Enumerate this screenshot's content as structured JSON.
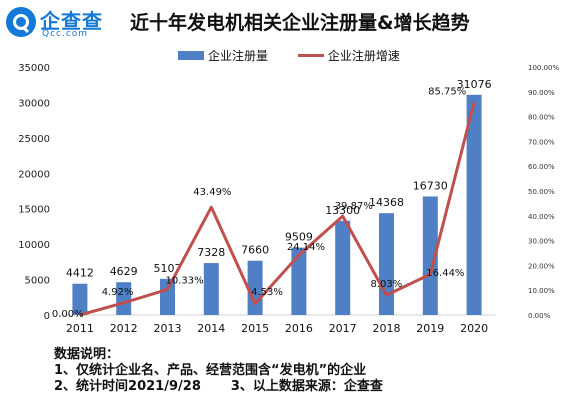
{
  "brand": {
    "name_cn": "企查查",
    "name_en": "Qcc.com",
    "color": "#1479d7"
  },
  "title": "近十年发电机相关企业注册量&增长趋势",
  "notes": {
    "heading": "数据说明：",
    "line1": "1、仅统计企业名、产品、经营范围含“发电机”的企业",
    "line2a": "2、统计时间2021/9/28",
    "line2b": "3、以上数据来源：企查查"
  },
  "chart_data": {
    "type": "bar",
    "title": "近十年发电机相关企业注册量&增长趋势",
    "categories": [
      "2011",
      "2012",
      "2013",
      "2014",
      "2015",
      "2016",
      "2017",
      "2018",
      "2019",
      "2020"
    ],
    "series": [
      {
        "name": "企业注册量",
        "type": "bar",
        "axis": "left",
        "color": "#4f7fc4",
        "values": [
          4412,
          4629,
          5107,
          7328,
          7660,
          9509,
          13300,
          14368,
          16730,
          31076
        ],
        "labels": [
          "4412",
          "4629",
          "5107",
          "7328",
          "7660",
          "9509",
          "13300",
          "14368",
          "16730",
          "31076"
        ]
      },
      {
        "name": "企业注册增速",
        "type": "line",
        "axis": "right",
        "color": "#c0504d",
        "values": [
          0.0,
          4.92,
          10.33,
          43.49,
          4.53,
          24.14,
          39.87,
          8.03,
          16.44,
          85.75
        ],
        "labels": [
          "0.00%",
          "4.92%",
          "10.33%",
          "43.49%",
          "4.53%",
          "24.14%",
          "39.87%",
          "8.03%",
          "16.44%",
          "85.75%"
        ]
      }
    ],
    "y_left": {
      "min": 0,
      "max": 35000,
      "ticks": [
        "0",
        "5000",
        "10000",
        "15000",
        "20000",
        "25000",
        "30000",
        "35000"
      ]
    },
    "y_right": {
      "min": 0,
      "max": 100,
      "ticks": [
        "0.00%",
        "10.00%",
        "20.00%",
        "30.00%",
        "40.00%",
        "50.00%",
        "60.00%",
        "70.00%",
        "80.00%",
        "90.00%",
        "100.00%"
      ]
    },
    "legend": "top",
    "grid": false
  }
}
